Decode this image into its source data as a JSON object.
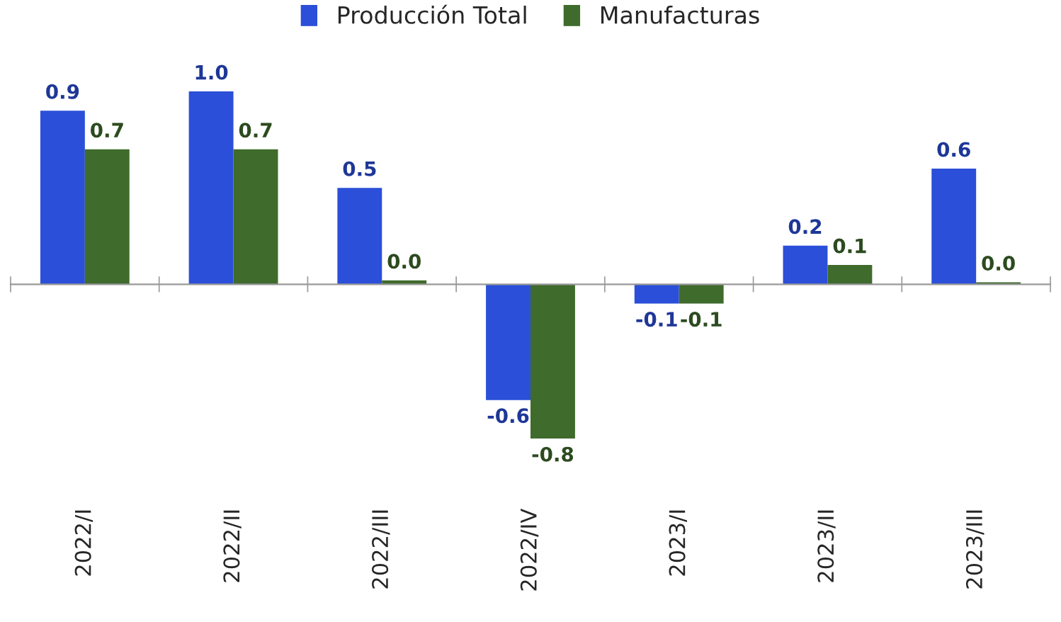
{
  "chart_data": {
    "type": "bar",
    "categories": [
      "2022/I",
      "2022/II",
      "2022/III",
      "2022/IV",
      "2023/I",
      "2023/II",
      "2023/III"
    ],
    "series": [
      {
        "name": "Producción Total",
        "color": "#2b4fd8",
        "values": [
          0.9,
          1.0,
          0.5,
          -0.6,
          -0.1,
          0.2,
          0.6
        ],
        "value_labels": [
          "0.9",
          "1.0",
          "0.5",
          "-0.6",
          "-0.1",
          "0.2",
          "0.6"
        ]
      },
      {
        "name": "Manufacturas",
        "color": "#3f6b2c",
        "values": [
          0.7,
          0.7,
          0.02,
          -0.8,
          -0.1,
          0.1,
          0.01
        ],
        "value_labels": [
          "0.7",
          "0.7",
          "0.0",
          "-0.8",
          "-0.1",
          "0.1",
          "0.0"
        ]
      }
    ],
    "legend": "top",
    "grid": false
  }
}
